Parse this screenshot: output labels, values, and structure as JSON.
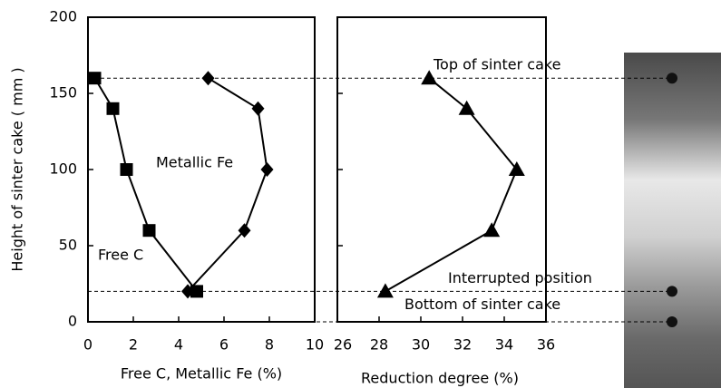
{
  "chart_data": [
    {
      "type": "line",
      "xlabel": "Free C, Metallic Fe (%)",
      "ylabel": "Height of sinter cake ( mm )",
      "xlim": [
        0,
        10
      ],
      "xticks": [
        0,
        2,
        4,
        6,
        8,
        10
      ],
      "ylim": [
        0,
        200
      ],
      "yticks": [
        0,
        50,
        100,
        150,
        200
      ],
      "series": [
        {
          "name": "Free C",
          "marker": "square",
          "color": "#000000",
          "x": [
            0.3,
            1.1,
            1.7,
            2.7,
            4.8
          ],
          "values": [
            160,
            140,
            100,
            60,
            20
          ]
        },
        {
          "name": "Metallic Fe",
          "marker": "diamond",
          "color": "#000000",
          "x": [
            5.3,
            7.5,
            7.9,
            6.9,
            4.4
          ],
          "values": [
            160,
            140,
            100,
            60,
            20
          ]
        }
      ]
    },
    {
      "type": "line",
      "xlabel": "Reduction degree (%)",
      "xlim": [
        26,
        36
      ],
      "xticks": [
        26,
        28,
        30,
        32,
        34,
        36
      ],
      "ylim": [
        0,
        200
      ],
      "yticks": [
        0,
        50,
        100,
        150,
        200
      ],
      "series": [
        {
          "marker": "triangle",
          "color": "#000000",
          "x": [
            30.4,
            32.2,
            34.6,
            33.4,
            28.3
          ],
          "values": [
            160,
            140,
            100,
            60,
            20
          ]
        }
      ],
      "hlines": [
        160,
        20,
        0
      ],
      "annotations": [
        "Top of sinter cake",
        "Interrupted position",
        "Bottom of sinter cake"
      ]
    }
  ]
}
